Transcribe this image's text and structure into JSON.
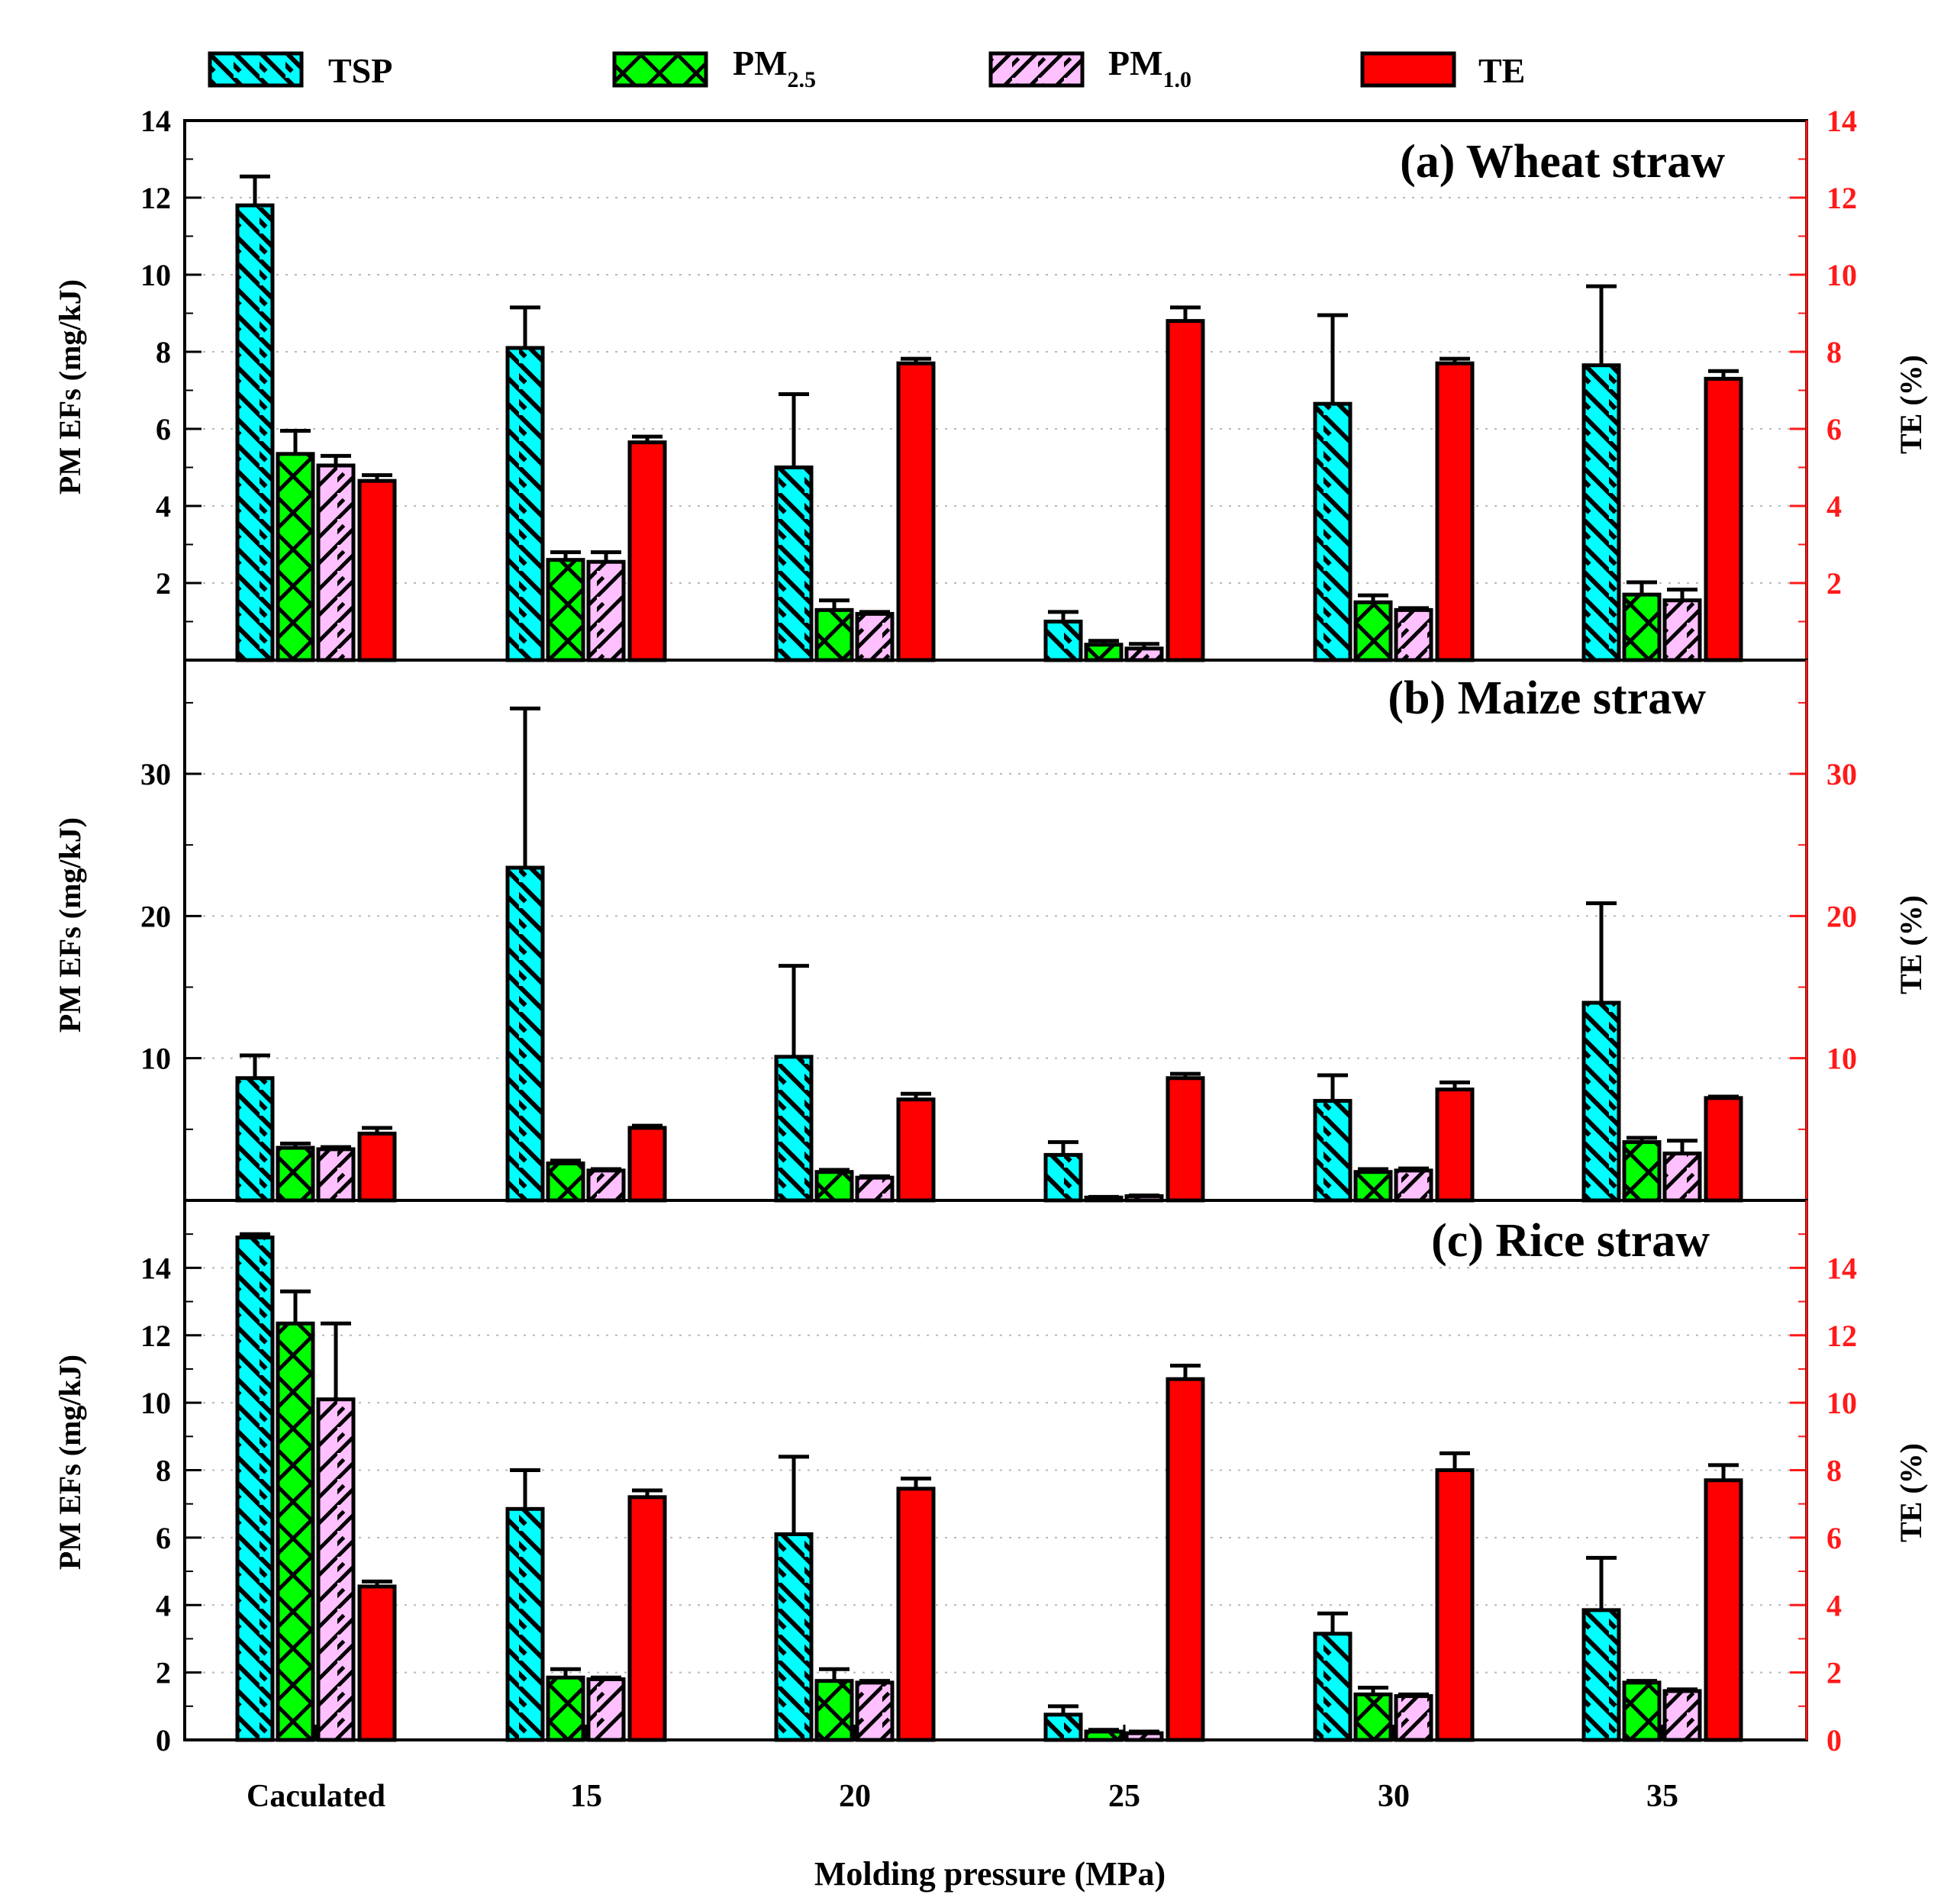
{
  "chart_data": {
    "type": "bar",
    "xlabel": "Molding pressure (MPa)",
    "categories": [
      "Caculated",
      "15",
      "20",
      "25",
      "30",
      "35"
    ],
    "legend": [
      {
        "key": "TSP",
        "label": "TSP",
        "sub": "",
        "color": "#00ffff",
        "pattern": "backslash"
      },
      {
        "key": "PM25",
        "label": "PM",
        "sub": "2.5",
        "color": "#00ff00",
        "pattern": "cross"
      },
      {
        "key": "PM10",
        "label": "PM",
        "sub": "1.0",
        "color": "#ffc0ff",
        "pattern": "slash"
      },
      {
        "key": "TE",
        "label": "TE",
        "sub": "",
        "color": "#ff0000",
        "pattern": "none"
      }
    ],
    "panels": [
      {
        "id": "a",
        "title": "(a) Wheat straw",
        "ylabel": "PM EFs  (mg/kJ)",
        "y2label": "TE (%)",
        "ylim": [
          0,
          14
        ],
        "yticks": [
          2,
          4,
          6,
          8,
          10,
          12,
          14
        ],
        "y2ticks": [
          2,
          4,
          6,
          8,
          10,
          12,
          14
        ],
        "tick_labels": [
          "2",
          "4",
          "6",
          "8",
          "10",
          "12",
          "14"
        ],
        "series": [
          {
            "key": "TSP",
            "values": [
              11.8,
              8.1,
              5.0,
              1.0,
              6.65,
              7.65
            ],
            "errors": [
              0.75,
              1.05,
              1.9,
              0.25,
              2.3,
              2.05
            ]
          },
          {
            "key": "PM25",
            "values": [
              5.35,
              2.6,
              1.3,
              0.4,
              1.5,
              1.7
            ],
            "errors": [
              0.6,
              0.2,
              0.25,
              0.1,
              0.18,
              0.32
            ]
          },
          {
            "key": "PM10",
            "values": [
              5.05,
              2.55,
              1.2,
              0.3,
              1.3,
              1.55
            ],
            "errors": [
              0.25,
              0.25,
              0.05,
              0.12,
              0.05,
              0.28
            ]
          },
          {
            "key": "TE",
            "values": [
              4.65,
              5.65,
              7.7,
              8.8,
              7.7,
              7.3
            ],
            "errors": [
              0.15,
              0.15,
              0.12,
              0.35,
              0.12,
              0.2
            ]
          }
        ]
      },
      {
        "id": "b",
        "title": "(b) Maize straw",
        "ylabel": "PM EFs  (mg/kJ)",
        "y2label": "TE (%)",
        "ylim": [
          0,
          38
        ],
        "yticks": [
          10,
          20,
          30
        ],
        "y2ticks": [
          10,
          20,
          30
        ],
        "tick_labels": [
          "10",
          "20",
          "30"
        ],
        "series": [
          {
            "key": "TSP",
            "values": [
              8.6,
              23.4,
              10.1,
              3.2,
              7.0,
              13.9
            ],
            "errors": [
              1.6,
              11.2,
              6.4,
              0.9,
              1.8,
              7.0
            ]
          },
          {
            "key": "PM25",
            "values": [
              3.7,
              2.6,
              2.0,
              0.2,
              2.0,
              4.1
            ],
            "errors": [
              0.3,
              0.2,
              0.15,
              0.05,
              0.2,
              0.3
            ]
          },
          {
            "key": "PM10",
            "values": [
              3.6,
              2.1,
              1.6,
              0.3,
              2.1,
              3.3
            ],
            "errors": [
              0.15,
              0.1,
              0.1,
              0.05,
              0.15,
              0.9
            ]
          },
          {
            "key": "TE",
            "values": [
              4.7,
              5.1,
              7.1,
              8.6,
              7.8,
              7.2
            ],
            "errors": [
              0.4,
              0.15,
              0.4,
              0.3,
              0.5,
              0.1
            ]
          }
        ]
      },
      {
        "id": "c",
        "title": "(c) Rice straw",
        "ylabel": "PM EFs  (mg/kJ)",
        "y2label": "TE (%)",
        "ylim": [
          0,
          16
        ],
        "yticks": [
          0,
          2,
          4,
          6,
          8,
          10,
          12,
          14
        ],
        "y2ticks": [
          0,
          2,
          4,
          6,
          8,
          10,
          12,
          14
        ],
        "tick_labels": [
          "0",
          "2",
          "4",
          "6",
          "8",
          "10",
          "12",
          "14"
        ],
        "series": [
          {
            "key": "TSP",
            "values": [
              14.9,
              6.85,
              6.1,
              0.75,
              3.15,
              3.85
            ],
            "errors": [
              0.1,
              1.15,
              2.3,
              0.25,
              0.6,
              1.55
            ]
          },
          {
            "key": "PM25",
            "values": [
              12.35,
              1.85,
              1.75,
              0.25,
              1.35,
              1.7
            ],
            "errors": [
              0.95,
              0.25,
              0.35,
              0.05,
              0.2,
              0.05
            ]
          },
          {
            "key": "PM10",
            "values": [
              10.1,
              1.8,
              1.7,
              0.2,
              1.3,
              1.45
            ],
            "errors": [
              2.25,
              0.05,
              0.05,
              0.05,
              0.05,
              0.05
            ]
          },
          {
            "key": "TE",
            "values": [
              4.55,
              7.2,
              7.45,
              10.7,
              8.0,
              7.7
            ],
            "errors": [
              0.15,
              0.2,
              0.3,
              0.4,
              0.5,
              0.45
            ]
          }
        ]
      }
    ]
  }
}
